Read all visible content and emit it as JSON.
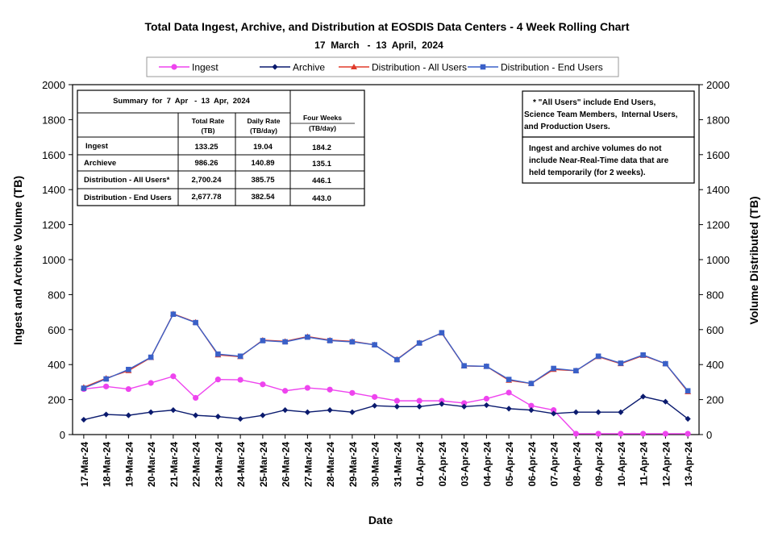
{
  "chart_data": {
    "type": "line",
    "title": "Total Data Ingest, Archive, and  Distribution at EOSDIS Data Centers - 4 Week Rolling Chart",
    "subtitle": "17  March   -  13  April,  2024",
    "xlabel": "Date",
    "ylabel_left": "Ingest and Archive Volume (TB)",
    "ylabel_right": "Volume Distributed (TB)",
    "ylim": [
      0,
      2000
    ],
    "yticks": [
      0,
      200,
      400,
      600,
      800,
      1000,
      1200,
      1400,
      1600,
      1800,
      2000
    ],
    "grid": false,
    "legend_position": "top-center",
    "categories": [
      "17-Mar-24",
      "18-Mar-24",
      "19-Mar-24",
      "20-Mar-24",
      "21-Mar-24",
      "22-Mar-24",
      "23-Mar-24",
      "24-Mar-24",
      "25-Mar-24",
      "26-Mar-24",
      "27-Mar-24",
      "28-Mar-24",
      "29-Mar-24",
      "30-Mar-24",
      "31-Mar-24",
      "01-Apr-24",
      "02-Apr-24",
      "03-Apr-24",
      "04-Apr-24",
      "05-Apr-24",
      "06-Apr-24",
      "07-Apr-24",
      "08-Apr-24",
      "09-Apr-24",
      "10-Apr-24",
      "11-Apr-24",
      "12-Apr-24",
      "13-Apr-24"
    ],
    "series": [
      {
        "name": "Ingest",
        "color": "#ee44ee",
        "marker": "circle",
        "values": [
          260,
          275,
          260,
          295,
          333,
          210,
          315,
          313,
          287,
          250,
          267,
          257,
          238,
          215,
          193,
          193,
          193,
          180,
          205,
          240,
          165,
          140,
          5,
          5,
          5,
          5,
          5,
          5
        ]
      },
      {
        "name": "Archive",
        "color": "#0a1a6e",
        "marker": "diamond",
        "values": [
          85,
          115,
          110,
          128,
          140,
          110,
          103,
          90,
          110,
          140,
          128,
          140,
          128,
          165,
          160,
          160,
          175,
          160,
          168,
          148,
          140,
          120,
          128,
          128,
          128,
          217,
          188,
          90
        ]
      },
      {
        "name": "Distribution - All Users",
        "color": "#e03a2a",
        "marker": "triangle",
        "values": [
          270,
          322,
          365,
          440,
          690,
          642,
          455,
          445,
          540,
          533,
          560,
          540,
          533,
          513,
          430,
          525,
          580,
          392,
          390,
          310,
          292,
          372,
          365,
          445,
          405,
          452,
          405,
          245
        ]
      },
      {
        "name": "Distribution - End Users",
        "color": "#3a60c8",
        "marker": "square",
        "values": [
          265,
          318,
          372,
          442,
          688,
          640,
          460,
          448,
          537,
          530,
          557,
          537,
          530,
          513,
          428,
          523,
          582,
          393,
          390,
          315,
          292,
          378,
          365,
          448,
          408,
          455,
          405,
          250
        ]
      }
    ],
    "summary_table": {
      "caption": "Summary  for  7  Apr   -  13  Apr,  2024",
      "col_headers": [
        [
          "Total Rate",
          "(TB)"
        ],
        [
          "Daily Rate",
          "(TB/day)"
        ],
        [
          "Four Weeks",
          "(TB/day)"
        ]
      ],
      "rows": [
        {
          "label": "Ingest",
          "total": "133.25",
          "daily": "19.04",
          "four": "184.2"
        },
        {
          "label": "Archieve",
          "total": "986.26",
          "daily": "140.89",
          "four": "135.1"
        },
        {
          "label": "Distribution - All Users*",
          "total": "2,700.24",
          "daily": "385.75",
          "four": "446.1"
        },
        {
          "label": "Distribution - End Users",
          "total": "2,677.78",
          "daily": "382.54",
          "four": "443.0"
        }
      ]
    },
    "notes": [
      [
        "* \"All Users\" include End Users,",
        "Science Team Members,  Internal Users,",
        "and Production Users."
      ],
      [
        "Ingest and archive volumes do not",
        "include Near-Real-Time data that are",
        "held temporarily (for 2 weeks)."
      ]
    ]
  }
}
